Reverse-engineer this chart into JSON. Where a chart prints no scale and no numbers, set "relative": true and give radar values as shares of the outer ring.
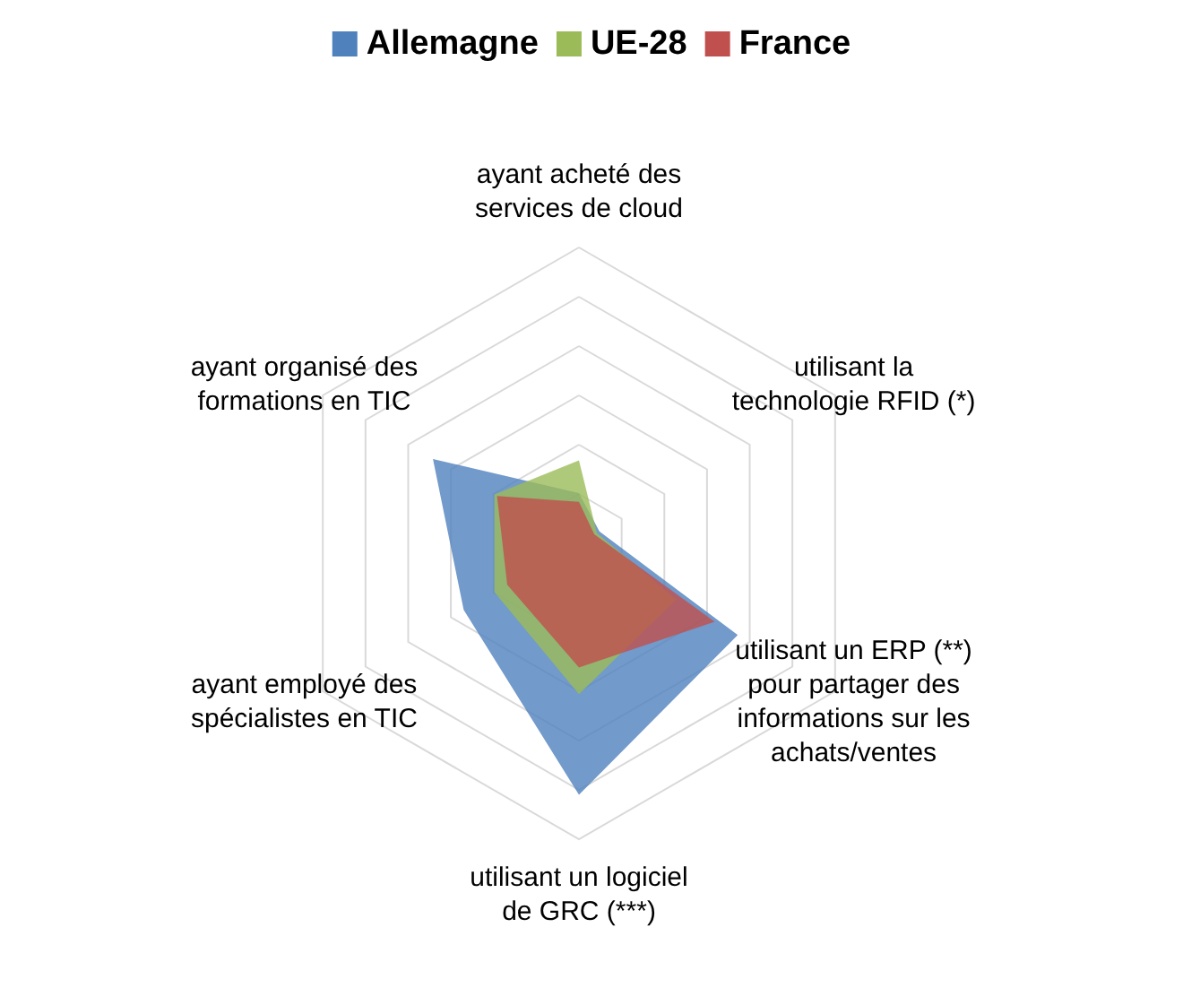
{
  "chart_data": {
    "type": "radar",
    "relative": true,
    "legend": "top",
    "grid": true,
    "categories": [
      "ayant acheté des services de cloud",
      "utilisant la technologie RFID (*)",
      "utilisant un ERP (**) pour partager des informations sur les achats/ventes",
      "utilisant un logiciel de GRC (***)",
      "ayant employé des spécialistes en TIC",
      "ayant organisé des formations en TIC"
    ],
    "series": [
      {
        "name": "Allemagne",
        "color": "#4f81bd",
        "values": [
          0.17,
          0.08,
          0.62,
          0.85,
          0.45,
          0.57
        ]
      },
      {
        "name": "UE-28",
        "color": "#9bbb59",
        "values": [
          0.28,
          0.07,
          0.38,
          0.51,
          0.33,
          0.33
        ]
      },
      {
        "name": "France",
        "color": "#c0504d",
        "values": [
          0.14,
          0.06,
          0.53,
          0.42,
          0.28,
          0.32
        ]
      }
    ]
  }
}
